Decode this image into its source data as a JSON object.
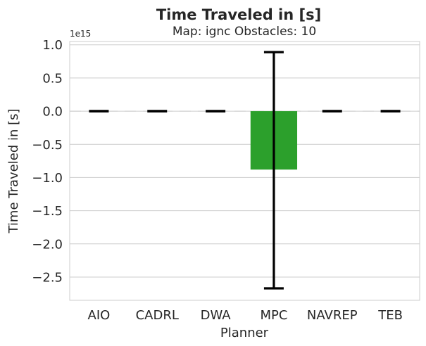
{
  "chart_data": {
    "type": "bar",
    "title": "Time Traveled in [s]",
    "subtitle": "Map: ignc Obstacles: 10",
    "xlabel": "Planner",
    "ylabel": "Time Traveled in [s]",
    "y_offset_label": "1e15",
    "y_scale_factor": 1000000000000000.0,
    "categories": [
      "AIO",
      "CADRL",
      "DWA",
      "MPC",
      "NAVREP",
      "TEB"
    ],
    "values": [
      0,
      0,
      0,
      -0.88,
      0,
      0
    ],
    "error_low": [
      0,
      0,
      0,
      -2.67,
      0,
      0
    ],
    "error_high": [
      0,
      0,
      0,
      0.89,
      0,
      0
    ],
    "colors": [
      "#1f77b4",
      "#ff7f0e",
      "#d62728",
      "#2ca02c",
      "#9467bd",
      "#8c564b"
    ],
    "yticks": [
      1.0,
      0.5,
      0.0,
      -0.5,
      -1.0,
      -1.5,
      -2.0,
      -2.5
    ],
    "ytick_labels": [
      "1.0",
      "0.5",
      "0.0",
      "−0.5",
      "−1.0",
      "−1.5",
      "−2.0",
      "−2.5"
    ],
    "ylim": [
      -2.85,
      1.05
    ],
    "grid": true,
    "legend": "none"
  }
}
